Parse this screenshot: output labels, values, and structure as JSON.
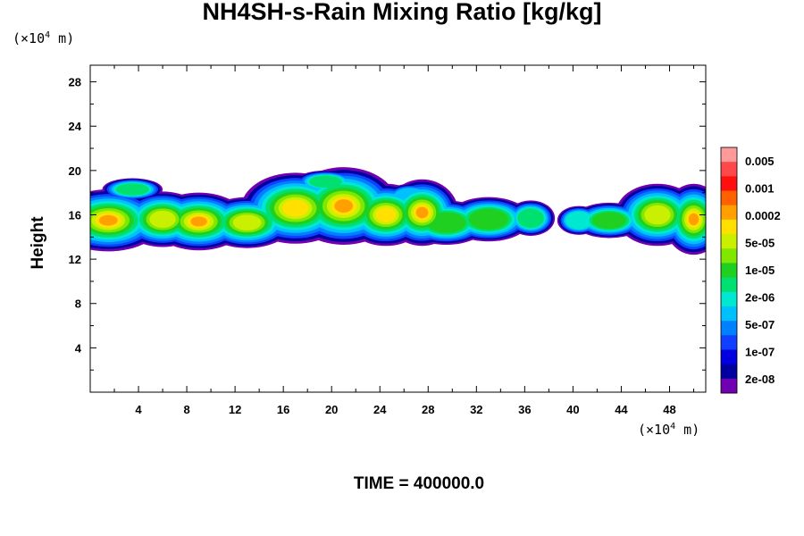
{
  "chart_data": {
    "type": "contour",
    "title": "NH4SH-s-Rain Mixing Ratio [kg/kg]",
    "ylabel": "Height",
    "x_unit": "(×10",
    "x_unit_exp": "4",
    "x_unit_tail": " m)",
    "y_unit": "(×10",
    "y_unit_exp": "4",
    "y_unit_tail": " m)",
    "footer": "TIME = 400000.0",
    "xlim": [
      0,
      51
    ],
    "ylim": [
      0,
      29.5
    ],
    "x_ticks": [
      4,
      8,
      12,
      16,
      20,
      24,
      28,
      32,
      36,
      40,
      44,
      48
    ],
    "y_ticks": [
      4,
      8,
      12,
      16,
      20,
      24,
      28
    ],
    "colorbar": {
      "labels": [
        "0.005",
        "0.001",
        "0.0002",
        "5e-05",
        "1e-05",
        "2e-06",
        "5e-07",
        "1e-07",
        "2e-08"
      ],
      "colors": [
        "#ff9a9a",
        "#ff4848",
        "#ff1010",
        "#ff6000",
        "#ffa000",
        "#ffe000",
        "#c8f000",
        "#80e800",
        "#20d020",
        "#00e070",
        "#00e8d0",
        "#00c0ff",
        "#0080ff",
        "#1040ff",
        "#0000e0",
        "#0000a0",
        "#7000b0"
      ]
    }
  }
}
